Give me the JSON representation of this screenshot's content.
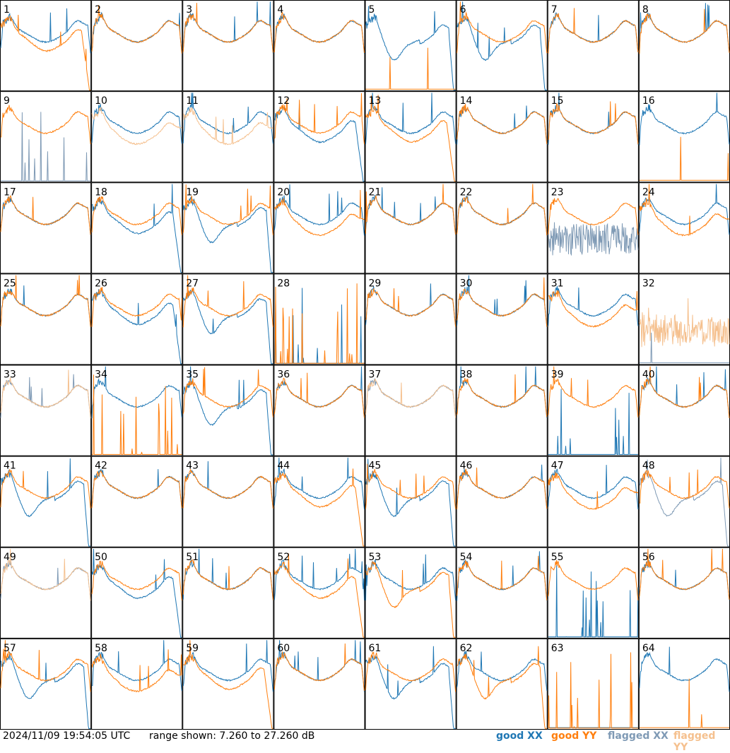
{
  "footer": {
    "timestamp": "2024/11/09 19:54:05 UTC",
    "range_text": "range shown: 7.260 to 27.260 dB"
  },
  "legend": [
    {
      "key": "good_xx",
      "label": "good XX",
      "color": "#1f77b4"
    },
    {
      "key": "good_yy",
      "label": "good YY",
      "color": "#ff7f0e"
    },
    {
      "key": "flagged_xx",
      "label": "flagged XX",
      "color": "#7f9ab5"
    },
    {
      "key": "flagged_yy",
      "label": "flagged YY",
      "color": "#f5c08e"
    }
  ],
  "chart_data": {
    "type": "line",
    "layout": "small-multiples grid, 8 columns x 8 rows",
    "ylim_db": [
      7.26,
      27.26
    ],
    "tiles": [
      {
        "label": "1",
        "xx": "good",
        "yy": "good",
        "xx_shape": "normal",
        "yy_shape": "dropoff"
      },
      {
        "label": "2",
        "xx": "good",
        "yy": "good",
        "xx_shape": "normal",
        "yy_shape": "normal"
      },
      {
        "label": "3",
        "xx": "good",
        "yy": "good",
        "xx_shape": "normal",
        "yy_shape": "normal"
      },
      {
        "label": "4",
        "xx": "good",
        "yy": "good",
        "xx_shape": "normal",
        "yy_shape": "normal"
      },
      {
        "label": "5",
        "xx": "good",
        "yy": "good",
        "xx_shape": "dip",
        "yy_shape": "floor"
      },
      {
        "label": "6",
        "xx": "good",
        "yy": "good",
        "xx_shape": "dip",
        "yy_shape": "normal"
      },
      {
        "label": "7",
        "xx": "good",
        "yy": "good",
        "xx_shape": "normal",
        "yy_shape": "normal"
      },
      {
        "label": "8",
        "xx": "good",
        "yy": "good",
        "xx_shape": "normal",
        "yy_shape": "normal"
      },
      {
        "label": "9",
        "xx": "flagged",
        "yy": "good",
        "xx_shape": "sparse",
        "yy_shape": "normal"
      },
      {
        "label": "10",
        "xx": "good",
        "yy": "flagged",
        "xx_shape": "normal",
        "yy_shape": "low"
      },
      {
        "label": "11",
        "xx": "good",
        "yy": "flagged",
        "xx_shape": "normal",
        "yy_shape": "low"
      },
      {
        "label": "12",
        "xx": "good",
        "yy": "good",
        "xx_shape": "dropoff",
        "yy_shape": "normal"
      },
      {
        "label": "13",
        "xx": "good",
        "yy": "good",
        "xx_shape": "normal",
        "yy_shape": "dropoff"
      },
      {
        "label": "14",
        "xx": "good",
        "yy": "good",
        "xx_shape": "normal",
        "yy_shape": "normal"
      },
      {
        "label": "15",
        "xx": "good",
        "yy": "good",
        "xx_shape": "normal",
        "yy_shape": "normal"
      },
      {
        "label": "16",
        "xx": "good",
        "yy": "good",
        "xx_shape": "normal",
        "yy_shape": "floor"
      },
      {
        "label": "17",
        "xx": "good",
        "yy": "good",
        "xx_shape": "normal",
        "yy_shape": "normal"
      },
      {
        "label": "18",
        "xx": "good",
        "yy": "good",
        "xx_shape": "dropoff",
        "yy_shape": "normal"
      },
      {
        "label": "19",
        "xx": "good",
        "yy": "good",
        "xx_shape": "dip",
        "yy_shape": "normal"
      },
      {
        "label": "20",
        "xx": "good",
        "yy": "good",
        "xx_shape": "normal",
        "yy_shape": "low"
      },
      {
        "label": "21",
        "xx": "good",
        "yy": "good",
        "xx_shape": "normal",
        "yy_shape": "normal"
      },
      {
        "label": "22",
        "xx": "good",
        "yy": "good",
        "xx_shape": "normal",
        "yy_shape": "normal"
      },
      {
        "label": "23",
        "xx": "flagged",
        "yy": "good",
        "xx_shape": "noisy",
        "yy_shape": "normal"
      },
      {
        "label": "24",
        "xx": "good",
        "yy": "good",
        "xx_shape": "normal",
        "yy_shape": "low"
      },
      {
        "label": "25",
        "xx": "good",
        "yy": "good",
        "xx_shape": "normal",
        "yy_shape": "normal"
      },
      {
        "label": "26",
        "xx": "good",
        "yy": "good",
        "xx_shape": "dropoff",
        "yy_shape": "normal"
      },
      {
        "label": "27",
        "xx": "good",
        "yy": "good",
        "xx_shape": "dip",
        "yy_shape": "normal"
      },
      {
        "label": "28",
        "xx": "good",
        "yy": "good",
        "xx_shape": "sparse",
        "yy_shape": "sparse"
      },
      {
        "label": "29",
        "xx": "good",
        "yy": "good",
        "xx_shape": "normal",
        "yy_shape": "normal"
      },
      {
        "label": "30",
        "xx": "good",
        "yy": "good",
        "xx_shape": "normal",
        "yy_shape": "normal"
      },
      {
        "label": "31",
        "xx": "good",
        "yy": "good",
        "xx_shape": "normal",
        "yy_shape": "low"
      },
      {
        "label": "32",
        "xx": "flagged",
        "yy": "flagged",
        "xx_shape": "floor",
        "yy_shape": "noisy"
      },
      {
        "label": "33",
        "xx": "flagged",
        "yy": "flagged",
        "xx_shape": "normal",
        "yy_shape": "normal"
      },
      {
        "label": "34",
        "xx": "good",
        "yy": "good",
        "xx_shape": "normal",
        "yy_shape": "sparse"
      },
      {
        "label": "35",
        "xx": "good",
        "yy": "good",
        "xx_shape": "dip",
        "yy_shape": "normal"
      },
      {
        "label": "36",
        "xx": "good",
        "yy": "good",
        "xx_shape": "normal",
        "yy_shape": "normal"
      },
      {
        "label": "37",
        "xx": "flagged",
        "yy": "flagged",
        "xx_shape": "normal",
        "yy_shape": "normal"
      },
      {
        "label": "38",
        "xx": "good",
        "yy": "good",
        "xx_shape": "normal",
        "yy_shape": "normal"
      },
      {
        "label": "39",
        "xx": "good",
        "yy": "good",
        "xx_shape": "sparse",
        "yy_shape": "normal"
      },
      {
        "label": "40",
        "xx": "good",
        "yy": "good",
        "xx_shape": "normal",
        "yy_shape": "normal"
      },
      {
        "label": "41",
        "xx": "good",
        "yy": "good",
        "xx_shape": "dip",
        "yy_shape": "normal"
      },
      {
        "label": "42",
        "xx": "good",
        "yy": "good",
        "xx_shape": "normal",
        "yy_shape": "normal"
      },
      {
        "label": "43",
        "xx": "good",
        "yy": "good",
        "xx_shape": "normal",
        "yy_shape": "normal"
      },
      {
        "label": "44",
        "xx": "good",
        "yy": "good",
        "xx_shape": "normal",
        "yy_shape": "dropoff"
      },
      {
        "label": "45",
        "xx": "good",
        "yy": "good",
        "xx_shape": "dip",
        "yy_shape": "normal"
      },
      {
        "label": "46",
        "xx": "good",
        "yy": "good",
        "xx_shape": "normal",
        "yy_shape": "normal"
      },
      {
        "label": "47",
        "xx": "good",
        "yy": "good",
        "xx_shape": "normal",
        "yy_shape": "low"
      },
      {
        "label": "48",
        "xx": "flagged",
        "yy": "good",
        "xx_shape": "dip",
        "yy_shape": "normal"
      },
      {
        "label": "49",
        "xx": "flagged",
        "yy": "flagged",
        "xx_shape": "normal",
        "yy_shape": "normal"
      },
      {
        "label": "50",
        "xx": "good",
        "yy": "good",
        "xx_shape": "dropoff",
        "yy_shape": "normal"
      },
      {
        "label": "51",
        "xx": "good",
        "yy": "good",
        "xx_shape": "normal",
        "yy_shape": "normal"
      },
      {
        "label": "52",
        "xx": "good",
        "yy": "good",
        "xx_shape": "normal",
        "yy_shape": "dropoff"
      },
      {
        "label": "53",
        "xx": "good",
        "yy": "good",
        "xx_shape": "normal",
        "yy_shape": "dip"
      },
      {
        "label": "54",
        "xx": "good",
        "yy": "good",
        "xx_shape": "normal",
        "yy_shape": "normal"
      },
      {
        "label": "55",
        "xx": "good",
        "yy": "good",
        "xx_shape": "sparse",
        "yy_shape": "normal"
      },
      {
        "label": "56",
        "xx": "good",
        "yy": "good",
        "xx_shape": "normal",
        "yy_shape": "normal"
      },
      {
        "label": "57",
        "xx": "good",
        "yy": "good",
        "xx_shape": "dip",
        "yy_shape": "normal"
      },
      {
        "label": "58",
        "xx": "good",
        "yy": "good",
        "xx_shape": "normal",
        "yy_shape": "low"
      },
      {
        "label": "59",
        "xx": "good",
        "yy": "good",
        "xx_shape": "normal",
        "yy_shape": "dropoff"
      },
      {
        "label": "60",
        "xx": "good",
        "yy": "good",
        "xx_shape": "normal",
        "yy_shape": "normal"
      },
      {
        "label": "61",
        "xx": "good",
        "yy": "good",
        "xx_shape": "dip",
        "yy_shape": "normal"
      },
      {
        "label": "62",
        "xx": "good",
        "yy": "good",
        "xx_shape": "normal",
        "yy_shape": "dip"
      },
      {
        "label": "63",
        "xx": "good",
        "yy": "good",
        "xx_shape": "floor",
        "yy_shape": "sparse"
      },
      {
        "label": "64",
        "xx": "good",
        "yy": "good",
        "xx_shape": "normal",
        "yy_shape": "floor"
      }
    ]
  }
}
